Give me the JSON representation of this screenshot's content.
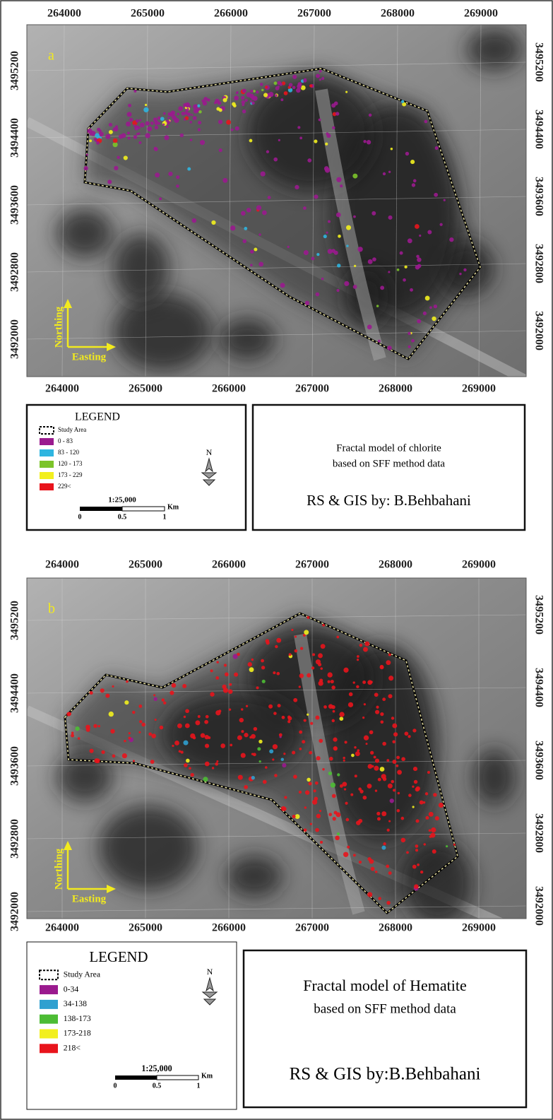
{
  "panels": [
    {
      "label": "a",
      "x_ticks": [
        264000,
        265000,
        266000,
        267000,
        268000,
        269000
      ],
      "y_ticks": [
        3495200,
        3494400,
        3493600,
        3492800,
        3492000
      ],
      "north_arrow": {
        "northing": "Northing",
        "easting": "Easting"
      },
      "legend": {
        "title": "LEGEND",
        "study_area": "Study Area",
        "classes": [
          {
            "range": "0 - 83",
            "color": "#9a1a8e"
          },
          {
            "range": "83 - 120",
            "color": "#2fb5e0"
          },
          {
            "range": "120 - 173",
            "color": "#7cc42a"
          },
          {
            "range": "173 - 229",
            "color": "#f2ef1e"
          },
          {
            "range": "229<",
            "color": "#e8141c"
          }
        ],
        "scale": {
          "ratio": "1:25,000",
          "unit": "Km",
          "marks": [
            0,
            0.5,
            1
          ]
        },
        "north": "N"
      },
      "caption": {
        "lines": [
          "Fractal model of chlorite",
          "based on SFF method data"
        ],
        "credit": "RS & GIS by: B.Behbahani"
      }
    },
    {
      "label": "b",
      "x_ticks": [
        264000,
        265000,
        266000,
        267000,
        268000,
        269000
      ],
      "y_ticks": [
        3495200,
        3494400,
        3493600,
        3492800,
        3492000
      ],
      "north_arrow": {
        "northing": "Northing",
        "easting": "Easting"
      },
      "legend": {
        "title": "LEGEND",
        "study_area": "Study Area",
        "classes": [
          {
            "range": "0-34",
            "color": "#9a1a8e"
          },
          {
            "range": "34-138",
            "color": "#2fa0d0"
          },
          {
            "range": "138-173",
            "color": "#4cbc34"
          },
          {
            "range": "173-218",
            "color": "#f2ef1e"
          },
          {
            "range": "218<",
            "color": "#e8141c"
          }
        ],
        "scale": {
          "ratio": "1:25,000",
          "unit": "Km",
          "marks": [
            0,
            0.5,
            1
          ]
        },
        "north": "N"
      },
      "caption": {
        "lines": [
          "Fractal model of Hematite",
          "based on SFF method data"
        ],
        "credit": "RS & GIS by:B.Behbahani"
      }
    }
  ]
}
